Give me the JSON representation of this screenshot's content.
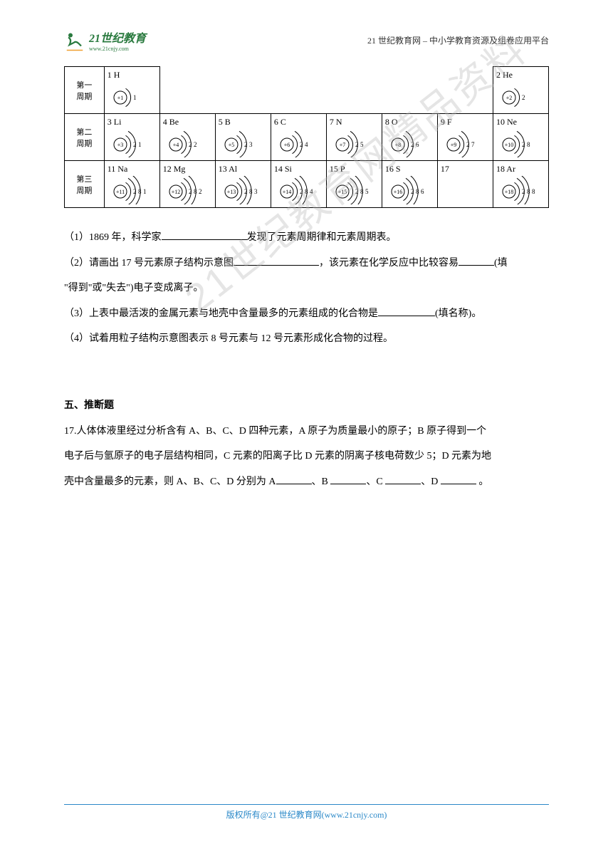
{
  "header": {
    "logo_main": "21世纪教育",
    "logo_sub": "www.21cnjy.com",
    "right_text": "21 世纪教育网 – 中小学教育资源及组卷应用平台"
  },
  "periodic_table": {
    "periods": [
      {
        "label": "第一\n周期",
        "cells": [
          {
            "label": "1 H",
            "nucleus": "+1",
            "shells": [
              1
            ]
          },
          null,
          null,
          null,
          null,
          null,
          null,
          {
            "label": "2 He",
            "nucleus": "+2",
            "shells": [
              2
            ]
          }
        ]
      },
      {
        "label": "第二\n周期",
        "cells": [
          {
            "label": "3 Li",
            "nucleus": "+3",
            "shells": [
              2,
              1
            ]
          },
          {
            "label": "4 Be",
            "nucleus": "+4",
            "shells": [
              2,
              2
            ]
          },
          {
            "label": "5 B",
            "nucleus": "+5",
            "shells": [
              2,
              3
            ]
          },
          {
            "label": "6 C",
            "nucleus": "+6",
            "shells": [
              2,
              4
            ]
          },
          {
            "label": "7 N",
            "nucleus": "+7",
            "shells": [
              2,
              5
            ]
          },
          {
            "label": "8 O",
            "nucleus": "+8",
            "shells": [
              2,
              6
            ]
          },
          {
            "label": "9 F",
            "nucleus": "+9",
            "shells": [
              2,
              7
            ]
          },
          {
            "label": "10 Ne",
            "nucleus": "+10",
            "shells": [
              2,
              8
            ]
          }
        ]
      },
      {
        "label": "第三\n周期",
        "cells": [
          {
            "label": "11 Na",
            "nucleus": "+11",
            "shells": [
              2,
              8,
              1
            ]
          },
          {
            "label": "12 Mg",
            "nucleus": "+12",
            "shells": [
              2,
              8,
              2
            ]
          },
          {
            "label": "13 Al",
            "nucleus": "+13",
            "shells": [
              2,
              8,
              3
            ]
          },
          {
            "label": "14 Si",
            "nucleus": "+14",
            "shells": [
              2,
              8,
              4
            ]
          },
          {
            "label": "15 P",
            "nucleus": "+15",
            "shells": [
              2,
              8,
              5
            ]
          },
          {
            "label": "16 S",
            "nucleus": "+16",
            "shells": [
              2,
              8,
              6
            ]
          },
          {
            "label": "17",
            "nucleus": null,
            "shells": []
          },
          {
            "label": "18 Ar",
            "nucleus": "+18",
            "shells": [
              2,
              8,
              8
            ]
          }
        ]
      }
    ]
  },
  "questions": {
    "q1": "（1）1869 年，科学家",
    "q1_end": "发现了元素周期律和元素周期表。",
    "q2": "（2）请画出 17 号元素原子结构示意图",
    "q2_mid": "，该元素在化学反应中比较容易",
    "q2_end": "(填",
    "q2_line2": "\"得到\"或\"失去\")电子变成离子。",
    "q3": "（3）上表中最活泼的金属元素与地壳中含量最多的元素组成的化合物是",
    "q3_end": "(填名称)。",
    "q4": "（4）试着用粒子结构示意图表示 8 号元素与 12 号元素形成化合物的过程。"
  },
  "section5": {
    "title": "五、推断题",
    "q17_p1": "17.人体体液里经过分析含有 A、B、C、D 四种元素，A 原子为质量最小的原子；B 原子得到一个",
    "q17_p2": "电子后与氩原子的电子层结构相同，C 元素的阳离子比 D 元素的阴离子核电荷数少 5；D 元素为地",
    "q17_p3a": "壳中含量最多的元素，则 A、B、C、D 分别为 A",
    "q17_p3b": "、B ",
    "q17_p3c": "、C ",
    "q17_p3d": "、D ",
    "q17_p3e": " 。"
  },
  "watermark": "21世纪教育网精品资料",
  "footer": {
    "text": "版权所有@21 世纪教育网",
    "link": "(www.21cnjy.com)"
  },
  "colors": {
    "logo_green": "#2a7a3f",
    "footer_blue": "#2a88c8",
    "text": "#000000",
    "watermark": "rgba(180,180,180,0.35)"
  }
}
